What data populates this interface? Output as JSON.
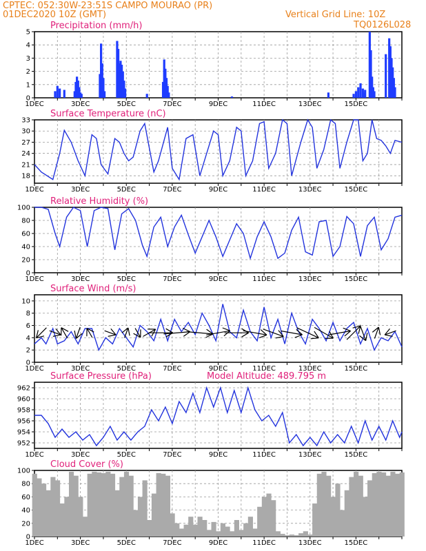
{
  "header": {
    "line1": "CPTEC:    052:30W-23:51S   CAMPO MOURAO (PR)",
    "line2": "01DEC2020 10Z (GMT)",
    "grid_note": "Vertical Grid Line: 10Z",
    "code": "TQ0126L028"
  },
  "x_ticks": [
    "1DEC",
    "3DEC",
    "5DEC",
    "7DEC",
    "9DEC",
    "11DEC",
    "13DEC",
    "15DEC"
  ],
  "colors": {
    "line": "#2233dd",
    "bar": "#1f3cff",
    "cloud": "#aaaaaa",
    "title": "#e0207a",
    "header": "#e8801a"
  },
  "chart_data": [
    {
      "type": "bar",
      "title": "Precipitation (mm/h)",
      "ylim": [
        0,
        5
      ],
      "yticks": [
        0,
        1,
        2,
        3,
        4,
        5
      ],
      "x": [
        0.9,
        1.0,
        1.1,
        1.3,
        1.75,
        1.8,
        1.85,
        1.9,
        1.95,
        2.0,
        2.05,
        2.85,
        2.9,
        2.95,
        3.0,
        3.05,
        3.6,
        3.65,
        3.7,
        3.75,
        3.8,
        3.85,
        3.9,
        3.95,
        4.9,
        5.6,
        5.65,
        5.7,
        5.75,
        5.8,
        5.85,
        8.6,
        12.8,
        13.9,
        14.0,
        14.1,
        14.2,
        14.3,
        14.35,
        14.4,
        14.6,
        14.65,
        14.7,
        14.75,
        14.8,
        15.3,
        15.45,
        15.5,
        15.55,
        15.6,
        15.65,
        15.7
      ],
      "values": [
        0.5,
        0.9,
        0.7,
        0.6,
        0.5,
        1.2,
        1.6,
        1.3,
        0.8,
        0.4,
        0.3,
        1.8,
        4.1,
        2.6,
        1.5,
        0.5,
        4.3,
        3.7,
        2.6,
        2.8,
        2.5,
        2.0,
        1.3,
        0.7,
        0.3,
        1.2,
        2.9,
        2.2,
        1.5,
        0.9,
        0.4,
        0.1,
        0.4,
        0.3,
        0.5,
        0.8,
        1.1,
        0.7,
        0.4,
        0.6,
        5.0,
        3.6,
        1.6,
        0.8,
        0.5,
        3.3,
        4.5,
        3.9,
        3.0,
        2.3,
        1.5,
        0.8
      ]
    },
    {
      "type": "line",
      "title": "Surface Temperature (nC)",
      "ylim": [
        16,
        33
      ],
      "yticks": [
        18,
        21,
        24,
        27,
        30,
        33
      ],
      "x": [
        0,
        0.3,
        0.8,
        1.1,
        1.3,
        1.6,
        1.9,
        2.2,
        2.5,
        2.7,
        2.9,
        3.2,
        3.5,
        3.7,
        3.9,
        4.1,
        4.3,
        4.6,
        4.8,
        5.2,
        5.4,
        5.8,
        6.0,
        6.3,
        6.6,
        6.9,
        7.2,
        7.5,
        7.8,
        8.0,
        8.2,
        8.5,
        8.8,
        9.0,
        9.2,
        9.5,
        9.8,
        10.0,
        10.2,
        10.5,
        10.8,
        11.0,
        11.2,
        11.6,
        11.9,
        12.1,
        12.3,
        12.6,
        12.9,
        13.1,
        13.3,
        13.6,
        13.9,
        14.1,
        14.3,
        14.5,
        14.7,
        14.9,
        15.1,
        15.3,
        15.5,
        15.7,
        16.0
      ],
      "values": [
        21,
        19,
        17,
        24,
        30.2,
        27,
        22,
        18,
        29,
        28,
        21,
        18.5,
        28,
        27,
        24,
        22,
        23,
        30,
        32,
        19,
        22,
        31,
        20,
        17,
        28,
        29,
        18,
        24,
        30,
        29,
        18,
        22,
        31,
        30,
        18,
        22,
        32,
        32.5,
        20,
        24,
        33,
        32,
        18,
        27,
        33,
        31,
        20,
        25,
        33,
        32,
        20,
        27,
        33,
        33,
        22,
        24,
        33,
        28,
        27.5,
        26,
        24,
        27.5,
        27
      ]
    },
    {
      "type": "line",
      "title": "Relative Humidity (%)",
      "ylim": [
        0,
        100
      ],
      "yticks": [
        0,
        20,
        40,
        60,
        80,
        100
      ],
      "x": [
        0,
        0.3,
        0.6,
        0.9,
        1.1,
        1.4,
        1.7,
        2.0,
        2.3,
        2.6,
        2.9,
        3.2,
        3.5,
        3.8,
        4.1,
        4.4,
        4.7,
        4.9,
        5.2,
        5.5,
        5.8,
        6.1,
        6.4,
        6.7,
        7.0,
        7.3,
        7.6,
        7.9,
        8.2,
        8.5,
        8.8,
        9.1,
        9.4,
        9.7,
        10.0,
        10.3,
        10.6,
        10.9,
        11.2,
        11.5,
        11.8,
        12.1,
        12.4,
        12.7,
        13.0,
        13.3,
        13.6,
        13.9,
        14.2,
        14.5,
        14.8,
        15.1,
        15.4,
        15.7,
        16.0
      ],
      "values": [
        100,
        100,
        97,
        60,
        40,
        85,
        100,
        95,
        40,
        95,
        100,
        98,
        35,
        90,
        98,
        80,
        42,
        25,
        70,
        85,
        40,
        70,
        88,
        58,
        30,
        55,
        80,
        55,
        25,
        50,
        75,
        60,
        22,
        55,
        78,
        55,
        22,
        30,
        65,
        85,
        32,
        27,
        78,
        80,
        25,
        40,
        86,
        75,
        25,
        72,
        85,
        35,
        52,
        85,
        88
      ]
    },
    {
      "type": "line",
      "title": "Surface Wind (m/s)",
      "ylim": [
        0,
        11
      ],
      "yticks": [
        0,
        2,
        4,
        6,
        8,
        10
      ],
      "x": [
        0,
        0.3,
        0.5,
        0.8,
        1.0,
        1.3,
        1.6,
        1.9,
        2.2,
        2.5,
        2.8,
        3.1,
        3.4,
        3.7,
        4.0,
        4.3,
        4.6,
        4.9,
        5.2,
        5.5,
        5.8,
        6.1,
        6.4,
        6.7,
        7.0,
        7.3,
        7.6,
        7.9,
        8.2,
        8.5,
        8.8,
        9.1,
        9.4,
        9.7,
        10.0,
        10.3,
        10.6,
        10.9,
        11.2,
        11.5,
        11.8,
        12.1,
        12.4,
        12.7,
        13.0,
        13.3,
        13.6,
        13.9,
        14.2,
        14.5,
        14.8,
        15.1,
        15.4,
        15.7,
        16.0
      ],
      "values": [
        3,
        4,
        3,
        5.5,
        3,
        3.5,
        5,
        3,
        5.5,
        5.5,
        2,
        4,
        3,
        5.5,
        4,
        2.5,
        6,
        5,
        3.5,
        7,
        3.5,
        7,
        5,
        6.5,
        4.5,
        8,
        6,
        3.5,
        9.5,
        5,
        4,
        8.5,
        5,
        3.5,
        9,
        4,
        7,
        3,
        8,
        5,
        3,
        7,
        5.5,
        3.5,
        6.5,
        3.5,
        5.5,
        6.5,
        3,
        5.5,
        2,
        4,
        3.5,
        5,
        2.5
      ],
      "arrows": [
        {
          "x": 0.3,
          "speed": 2.0,
          "dir_deg": 225
        },
        {
          "x": 0.9,
          "speed": 1.5,
          "dir_deg": 110
        },
        {
          "x": 1.3,
          "speed": 1.5,
          "dir_deg": 330
        },
        {
          "x": 1.9,
          "speed": 1.5,
          "dir_deg": 200
        },
        {
          "x": 2.4,
          "speed": 1.2,
          "dir_deg": 330
        },
        {
          "x": 3.3,
          "speed": 1.5,
          "dir_deg": 110
        },
        {
          "x": 4.0,
          "speed": 1.2,
          "dir_deg": 20
        },
        {
          "x": 4.5,
          "speed": 1.2,
          "dir_deg": 150
        },
        {
          "x": 5.0,
          "speed": 2.0,
          "dir_deg": 60
        },
        {
          "x": 5.5,
          "speed": 4.0,
          "dir_deg": 90
        },
        {
          "x": 6.2,
          "speed": 4.5,
          "dir_deg": 85
        },
        {
          "x": 7.2,
          "speed": 4.5,
          "dir_deg": 95
        },
        {
          "x": 8.0,
          "speed": 4.0,
          "dir_deg": 80
        },
        {
          "x": 8.8,
          "speed": 4.0,
          "dir_deg": 90
        },
        {
          "x": 9.6,
          "speed": 4.0,
          "dir_deg": 100
        },
        {
          "x": 10.4,
          "speed": 3.5,
          "dir_deg": 110
        },
        {
          "x": 11.2,
          "speed": 3.5,
          "dir_deg": 100
        },
        {
          "x": 11.9,
          "speed": 4.0,
          "dir_deg": 115
        },
        {
          "x": 12.6,
          "speed": 3.5,
          "dir_deg": 120
        },
        {
          "x": 13.3,
          "speed": 3.5,
          "dir_deg": 80
        },
        {
          "x": 13.9,
          "speed": 3.0,
          "dir_deg": 45
        },
        {
          "x": 14.3,
          "speed": 2.5,
          "dir_deg": 160
        },
        {
          "x": 14.9,
          "speed": 1.5,
          "dir_deg": 20
        },
        {
          "x": 15.5,
          "speed": 1.5,
          "dir_deg": 250
        }
      ]
    },
    {
      "type": "line",
      "title": "Surface Pressure (hPa)",
      "subtitle": "Model Altitude: 489.795 m",
      "ylim": [
        951,
        963
      ],
      "yticks": [
        952,
        954,
        956,
        958,
        960,
        962
      ],
      "x": [
        0,
        0.3,
        0.6,
        0.9,
        1.2,
        1.5,
        1.8,
        2.1,
        2.4,
        2.7,
        3.0,
        3.3,
        3.6,
        3.9,
        4.2,
        4.5,
        4.8,
        5.1,
        5.4,
        5.7,
        6.0,
        6.3,
        6.6,
        6.9,
        7.2,
        7.5,
        7.8,
        8.1,
        8.4,
        8.7,
        9.0,
        9.3,
        9.6,
        9.9,
        10.2,
        10.5,
        10.8,
        11.1,
        11.4,
        11.7,
        12.0,
        12.3,
        12.6,
        12.9,
        13.2,
        13.5,
        13.8,
        14.1,
        14.4,
        14.7,
        15.0,
        15.3,
        15.6,
        15.9,
        16.0
      ],
      "values": [
        957,
        957,
        955.5,
        953,
        954.5,
        953,
        954,
        952.5,
        953.5,
        951.5,
        953,
        955,
        952.5,
        954,
        952.5,
        954,
        955,
        958,
        956,
        958.5,
        955.5,
        959.5,
        957.5,
        961,
        957.5,
        962,
        958.5,
        962,
        957.5,
        961.5,
        957.5,
        962,
        958,
        956,
        957,
        955,
        957.5,
        952,
        953.5,
        951.5,
        953,
        951.5,
        954,
        952,
        953.5,
        952,
        955,
        952,
        956,
        952.5,
        955,
        952.5,
        956,
        953,
        954
      ]
    },
    {
      "type": "area",
      "title": "Cloud Cover (%)",
      "ylim": [
        0,
        100
      ],
      "yticks": [
        0,
        20,
        40,
        60,
        80,
        100
      ],
      "x": [
        0,
        0.2,
        0.4,
        0.6,
        0.8,
        1.0,
        1.2,
        1.4,
        1.6,
        1.8,
        2.0,
        2.2,
        2.4,
        2.6,
        2.8,
        3.0,
        3.2,
        3.4,
        3.6,
        3.8,
        4.0,
        4.2,
        4.4,
        4.6,
        4.8,
        5.0,
        5.2,
        5.4,
        5.6,
        5.8,
        6.0,
        6.2,
        6.4,
        6.6,
        6.8,
        7.0,
        7.2,
        7.4,
        7.6,
        7.8,
        8.0,
        8.2,
        8.4,
        8.6,
        8.8,
        9.0,
        9.2,
        9.4,
        9.6,
        9.8,
        10.0,
        10.2,
        10.4,
        10.6,
        10.8,
        11.0,
        11.2,
        11.4,
        11.6,
        11.8,
        12.0,
        12.2,
        12.4,
        12.6,
        12.8,
        13.0,
        13.2,
        13.4,
        13.6,
        13.8,
        14.0,
        14.2,
        14.4,
        14.6,
        14.8,
        15.0,
        15.2,
        15.4,
        15.6,
        15.8,
        16.0
      ],
      "values": [
        95,
        88,
        80,
        70,
        90,
        85,
        50,
        60,
        98,
        92,
        60,
        30,
        95,
        98,
        97,
        96,
        98,
        95,
        70,
        90,
        98,
        92,
        40,
        60,
        85,
        25,
        65,
        96,
        95,
        92,
        35,
        20,
        12,
        18,
        30,
        18,
        30,
        25,
        10,
        22,
        8,
        20,
        15,
        8,
        25,
        10,
        20,
        30,
        12,
        45,
        60,
        65,
        55,
        8,
        4,
        2,
        3,
        2,
        5,
        8,
        3,
        50,
        95,
        98,
        92,
        60,
        80,
        40,
        70,
        90,
        98,
        92,
        60,
        85,
        96,
        98,
        97,
        92,
        98,
        95,
        97
      ]
    }
  ]
}
